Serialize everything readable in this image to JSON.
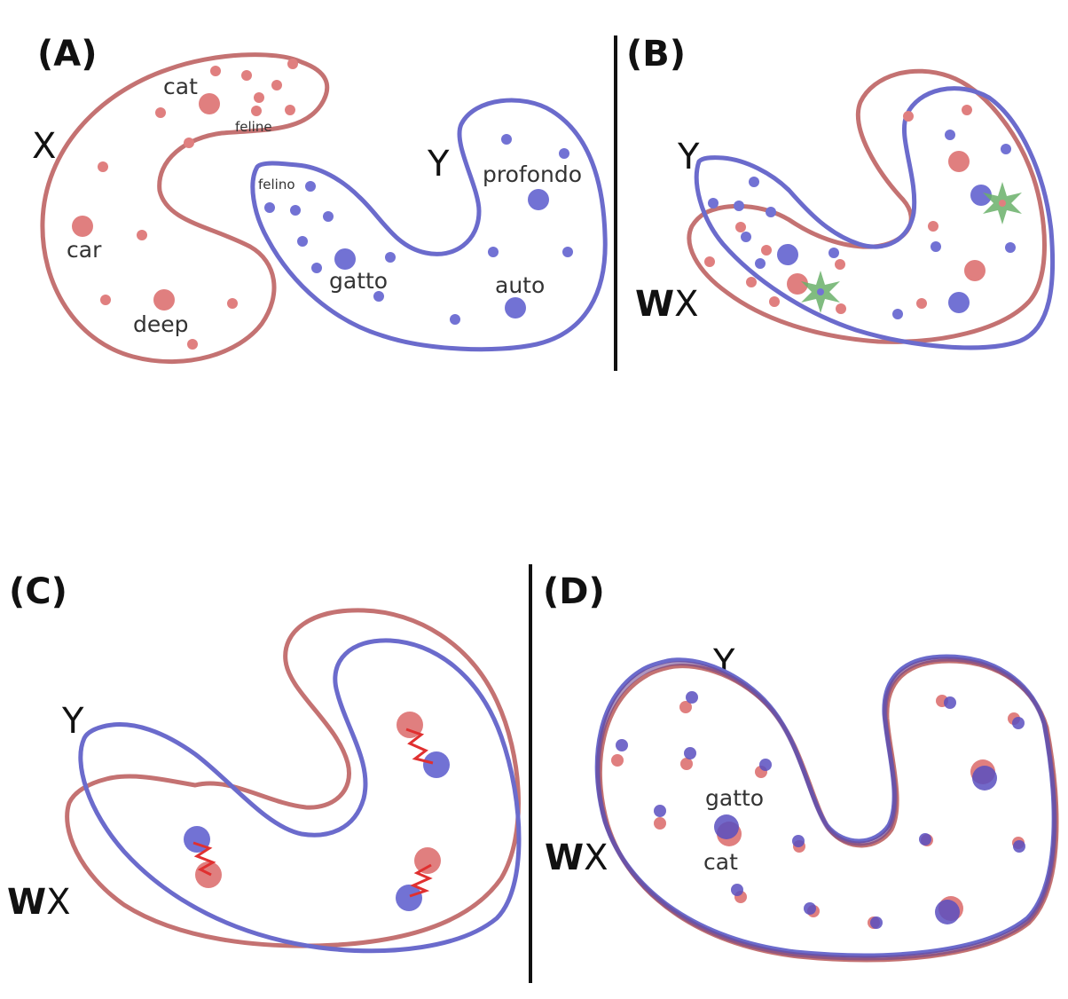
{
  "panels": {
    "a": {
      "label": "(A)",
      "space_x": "X",
      "space_y": "Y",
      "words_x": [
        "cat",
        "feline",
        "car",
        "deep"
      ],
      "words_y": [
        "felino",
        "profondo",
        "gatto",
        "auto"
      ]
    },
    "b": {
      "label": "(B)",
      "space_y": "Y",
      "w": "W",
      "x": "X"
    },
    "c": {
      "label": "(C)",
      "space_y": "Y",
      "w": "W",
      "x": "X"
    },
    "d": {
      "label": "(D)",
      "space_y": "Y",
      "w": "W",
      "x": "X",
      "words": [
        "gatto",
        "cat"
      ]
    }
  },
  "colors": {
    "source_space": "#c47272",
    "source_point": "#e07f7f",
    "target_space": "#6b6bcc",
    "target_point": "#7272d4",
    "aligned": "#6a3f8a",
    "anchor_star": "#6ab06a",
    "spring": "#e03030"
  }
}
